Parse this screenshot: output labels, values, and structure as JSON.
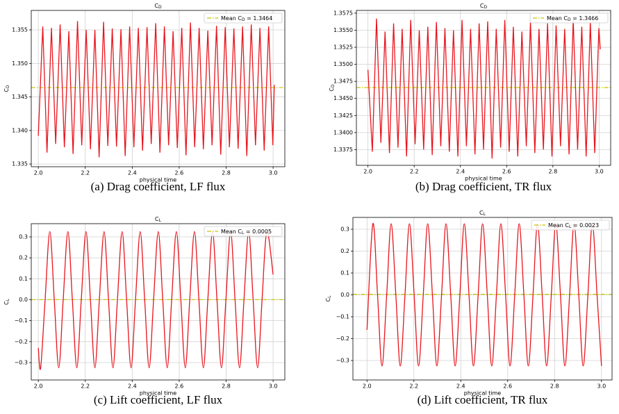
{
  "chart_data": [
    {
      "type": "line",
      "title": "C_D",
      "ylabel": "C_D",
      "xlabel": "physical time",
      "caption": "(a) Drag coefficient, LF flux",
      "x": [
        2.0,
        2.019,
        2.037,
        2.056,
        2.074,
        2.093,
        2.111,
        2.13,
        2.148,
        2.167,
        2.185,
        2.204,
        2.222,
        2.241,
        2.259,
        2.278,
        2.296,
        2.315,
        2.333,
        2.352,
        2.37,
        2.389,
        2.407,
        2.426,
        2.444,
        2.463,
        2.481,
        2.5,
        2.518,
        2.537,
        2.555,
        2.574,
        2.592,
        2.611,
        2.629,
        2.648,
        2.666,
        2.685,
        2.703,
        2.722,
        2.74,
        2.759,
        2.777,
        2.796,
        2.814,
        2.833,
        2.851,
        2.87,
        2.888,
        2.907,
        2.925,
        2.944,
        2.962,
        2.981,
        2.999,
        3.005
      ],
      "series": [
        {
          "color": "#e8141c",
          "values": [
            1.3392,
            1.3555,
            1.3367,
            1.3553,
            1.338,
            1.3558,
            1.3375,
            1.3548,
            1.3365,
            1.3563,
            1.3378,
            1.355,
            1.3372,
            1.355,
            1.336,
            1.3562,
            1.3377,
            1.3552,
            1.3376,
            1.3551,
            1.3362,
            1.3555,
            1.3375,
            1.3553,
            1.337,
            1.3554,
            1.338,
            1.356,
            1.3367,
            1.3555,
            1.3378,
            1.3548,
            1.3374,
            1.3553,
            1.3363,
            1.3561,
            1.3375,
            1.3553,
            1.3372,
            1.3549,
            1.3378,
            1.3556,
            1.3364,
            1.3554,
            1.3375,
            1.3552,
            1.3373,
            1.3555,
            1.3362,
            1.3558,
            1.3378,
            1.3553,
            1.337,
            1.3555,
            1.3378,
            1.3468
          ]
        }
      ],
      "mean": {
        "name": "Mean C_D = 1.3464",
        "value": 1.3464,
        "color": "#c4c400"
      },
      "xlim": [
        1.97,
        3.05
      ],
      "ylim": [
        1.3346,
        1.3579
      ],
      "xticks": [
        {
          "value": 2,
          "label": "2.0"
        },
        2.2,
        2.4,
        2.6,
        2.8,
        {
          "value": 3,
          "label": "3.0"
        }
      ],
      "yticks": [
        1.335,
        {
          "value": 1.34,
          "label": "1.340"
        },
        1.345,
        {
          "value": 1.35,
          "label": "1.350"
        },
        1.355
      ],
      "grid": true,
      "legend": "upper right",
      "smooth": false
    },
    {
      "type": "line",
      "title": "C_D",
      "ylabel": "C_D",
      "xlabel": "physical time",
      "caption": "(b) Drag coefficient, TR flux",
      "x": [
        2.0,
        2.019,
        2.037,
        2.056,
        2.074,
        2.093,
        2.111,
        2.13,
        2.148,
        2.167,
        2.185,
        2.204,
        2.222,
        2.241,
        2.259,
        2.278,
        2.296,
        2.315,
        2.333,
        2.352,
        2.37,
        2.389,
        2.407,
        2.426,
        2.444,
        2.463,
        2.481,
        2.5,
        2.518,
        2.537,
        2.555,
        2.574,
        2.592,
        2.611,
        2.629,
        2.648,
        2.666,
        2.685,
        2.703,
        2.722,
        2.74,
        2.759,
        2.777,
        2.796,
        2.814,
        2.833,
        2.851,
        2.87,
        2.888,
        2.907,
        2.925,
        2.944,
        2.962,
        2.981,
        2.999,
        3.005
      ],
      "series": [
        {
          "color": "#e8141c",
          "values": [
            1.3492,
            1.3372,
            1.3567,
            1.3385,
            1.3548,
            1.337,
            1.356,
            1.3378,
            1.3552,
            1.3365,
            1.3565,
            1.3383,
            1.355,
            1.3375,
            1.3555,
            1.3367,
            1.3562,
            1.338,
            1.3553,
            1.3372,
            1.355,
            1.3365,
            1.3565,
            1.338,
            1.3552,
            1.3368,
            1.356,
            1.3375,
            1.3563,
            1.3362,
            1.3552,
            1.3378,
            1.3565,
            1.3372,
            1.3555,
            1.3365,
            1.3548,
            1.338,
            1.3562,
            1.337,
            1.3552,
            1.3375,
            1.356,
            1.3365,
            1.3557,
            1.338,
            1.3552,
            1.3368,
            1.3565,
            1.3375,
            1.3555,
            1.3365,
            1.3562,
            1.337,
            1.3553,
            1.3522
          ]
        }
      ],
      "mean": {
        "name": "Mean C_D = 1.3466",
        "value": 1.3466,
        "color": "#c4c400"
      },
      "xlim": [
        1.95,
        3.05
      ],
      "ylim": [
        1.3352,
        1.3579
      ],
      "xticks": [
        {
          "value": 2,
          "label": "2.0"
        },
        2.2,
        2.4,
        2.6,
        2.8,
        {
          "value": 3,
          "label": "3.0"
        }
      ],
      "yticks": [
        1.3375,
        {
          "value": 1.34,
          "label": "1.3400"
        },
        1.3425,
        {
          "value": 1.345,
          "label": "1.3450"
        },
        1.3475,
        {
          "value": 1.35,
          "label": "1.3500"
        },
        1.3525,
        {
          "value": 1.355,
          "label": "1.3550"
        },
        1.3575
      ],
      "grid": true,
      "legend": "upper right",
      "smooth": false
    },
    {
      "type": "line",
      "title": "C_L",
      "ylabel": "C_L",
      "xlabel": "physical time",
      "caption": "(c) Lift coefficient, LF flux",
      "x": [
        2.0,
        2.01,
        2.029,
        2.049,
        2.068,
        2.087,
        2.106,
        2.126,
        2.145,
        2.164,
        2.183,
        2.203,
        2.222,
        2.241,
        2.26,
        2.28,
        2.299,
        2.318,
        2.337,
        2.357,
        2.376,
        2.395,
        2.414,
        2.434,
        2.453,
        2.472,
        2.491,
        2.511,
        2.53,
        2.549,
        2.568,
        2.588,
        2.607,
        2.626,
        2.645,
        2.665,
        2.684,
        2.703,
        2.722,
        2.742,
        2.761,
        2.78,
        2.799,
        2.819,
        2.838,
        2.857,
        2.876,
        2.896,
        2.915,
        2.934,
        2.953,
        2.973,
        3.0
      ],
      "series": [
        {
          "color": "#e8141c",
          "values": [
            -0.23,
            -0.325,
            0.0,
            0.325,
            0.0,
            -0.325,
            0.0,
            0.325,
            0.0,
            -0.325,
            0.0,
            0.325,
            0.0,
            -0.325,
            0.0,
            0.325,
            0.0,
            -0.325,
            0.0,
            0.325,
            0.0,
            -0.325,
            0.0,
            0.325,
            0.0,
            -0.325,
            0.0,
            0.325,
            0.0,
            -0.325,
            0.0,
            0.325,
            0.0,
            -0.325,
            0.0,
            0.325,
            0.0,
            -0.325,
            0.0,
            0.325,
            0.0,
            -0.325,
            0.0,
            0.325,
            0.0,
            -0.325,
            0.0,
            0.325,
            0.0,
            -0.325,
            0.0,
            0.325,
            0.12
          ]
        }
      ],
      "mean": {
        "name": "Mean C_L = 0.0005",
        "value": 0.0005,
        "color": "#c4c400"
      },
      "xlim": [
        1.97,
        3.05
      ],
      "ylim": [
        -0.383,
        0.363
      ],
      "xticks": [
        {
          "value": 2,
          "label": "2.0"
        },
        2.2,
        2.4,
        2.6,
        2.8,
        {
          "value": 3,
          "label": "3.0"
        }
      ],
      "yticks": [
        {
          "value": -0.3,
          "label": "−0.3"
        },
        {
          "value": -0.2,
          "label": "−0.2"
        },
        {
          "value": -0.1,
          "label": "−0.1"
        },
        {
          "value": 0,
          "label": "0.0"
        },
        0.1,
        0.2,
        0.3
      ],
      "grid": true,
      "legend": "upper right",
      "smooth": true
    },
    {
      "type": "line",
      "title": "C_L",
      "ylabel": "C_L",
      "xlabel": "physical time",
      "caption": "(d) Lift coefficient, TR flux",
      "x": [
        2.0,
        2.025,
        2.045,
        2.064,
        2.084,
        2.103,
        2.123,
        2.142,
        2.162,
        2.181,
        2.201,
        2.22,
        2.24,
        2.259,
        2.279,
        2.298,
        2.318,
        2.337,
        2.357,
        2.376,
        2.396,
        2.415,
        2.435,
        2.454,
        2.474,
        2.493,
        2.513,
        2.532,
        2.552,
        2.571,
        2.591,
        2.61,
        2.63,
        2.649,
        2.669,
        2.688,
        2.708,
        2.727,
        2.747,
        2.766,
        2.786,
        2.805,
        2.825,
        2.844,
        2.864,
        2.883,
        2.903,
        2.922,
        2.942,
        2.961,
        2.981,
        3.0
      ],
      "series": [
        {
          "color": "#e8141c",
          "values": [
            -0.16,
            0.325,
            0.0,
            -0.325,
            0.0,
            0.325,
            0.0,
            -0.325,
            0.0,
            0.325,
            0.0,
            -0.325,
            0.0,
            0.325,
            0.0,
            -0.325,
            0.0,
            0.325,
            0.0,
            -0.325,
            0.0,
            0.325,
            0.0,
            -0.325,
            0.0,
            0.325,
            0.0,
            -0.325,
            0.0,
            0.325,
            0.0,
            -0.325,
            0.0,
            0.325,
            0.0,
            -0.325,
            0.0,
            0.325,
            0.0,
            -0.325,
            0.0,
            0.325,
            0.0,
            -0.325,
            0.0,
            0.325,
            0.0,
            -0.325,
            0.0,
            0.325,
            0.0,
            -0.325
          ]
        }
      ],
      "mean": {
        "name": "Mean C_L = 0.0023",
        "value": 0.0023,
        "color": "#c4c400"
      },
      "xlim": [
        1.94,
        3.045
      ],
      "ylim": [
        -0.389,
        0.354
      ],
      "xticks": [
        {
          "value": 2,
          "label": "2.0"
        },
        2.2,
        2.4,
        2.6,
        2.8,
        {
          "value": 3,
          "label": "3.0"
        }
      ],
      "yticks": [
        {
          "value": -0.3,
          "label": "−0.3"
        },
        {
          "value": -0.2,
          "label": "−0.2"
        },
        {
          "value": -0.1,
          "label": "−0.1"
        },
        {
          "value": 0,
          "label": "0.0"
        },
        0.1,
        0.2,
        0.3
      ],
      "grid": true,
      "legend": "upper right",
      "smooth": true
    }
  ]
}
